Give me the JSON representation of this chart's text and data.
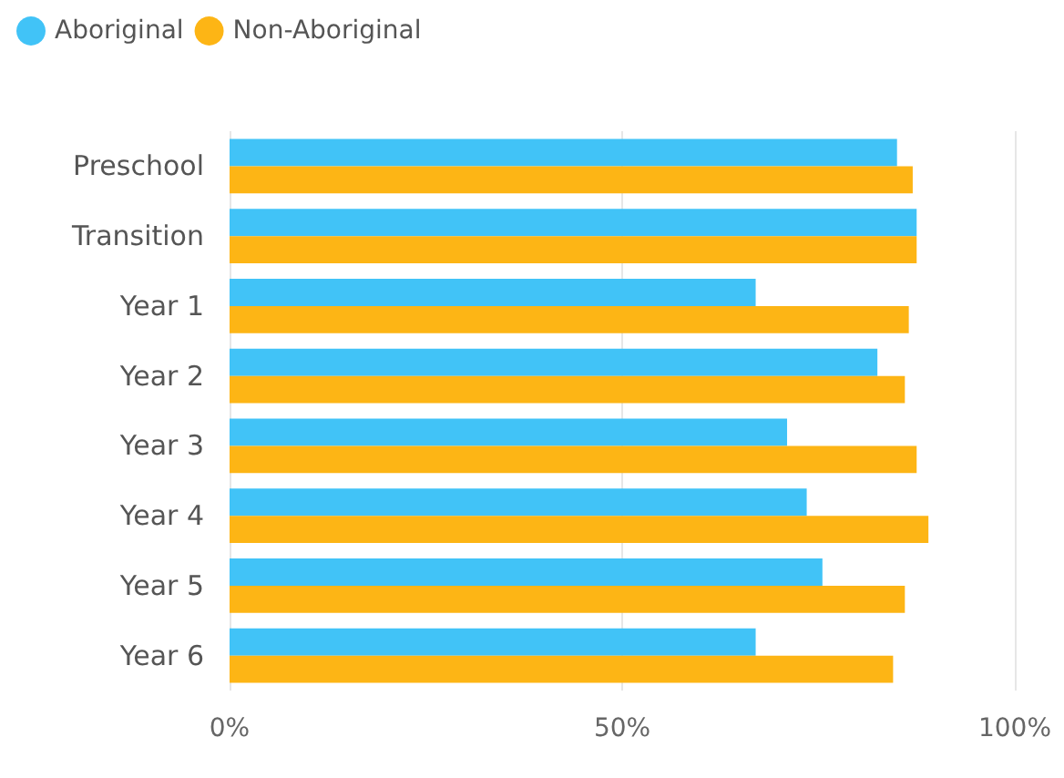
{
  "chart_data": {
    "type": "bar",
    "orientation": "horizontal",
    "categories": [
      "Preschool",
      "Transition",
      "Year 1",
      "Year 2",
      "Year 3",
      "Year 4",
      "Year 5",
      "Year 6"
    ],
    "series": [
      {
        "name": "Aboriginal",
        "color": "#41c3f7",
        "values": [
          85,
          87.5,
          67,
          82.5,
          71,
          73.5,
          75.5,
          67
        ]
      },
      {
        "name": "Non-Aboriginal",
        "color": "#fdb515",
        "values": [
          87,
          87.5,
          86.5,
          86,
          87.5,
          89,
          86,
          84.5
        ]
      }
    ],
    "xlim": [
      0,
      100
    ],
    "xticks": [
      {
        "value": 0,
        "label": "0%"
      },
      {
        "value": 50,
        "label": "50%"
      },
      {
        "value": 100,
        "label": "100%"
      }
    ],
    "grid": "x",
    "legend": "top left"
  }
}
